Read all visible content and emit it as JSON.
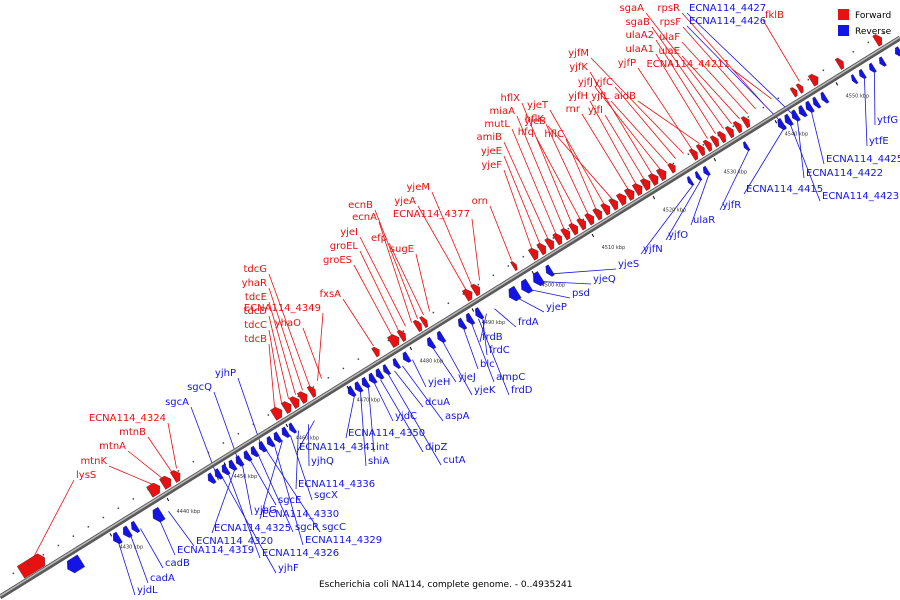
{
  "caption": "Escherichia coli NA114, complete genome. - 0..4935241",
  "legend": [
    {
      "label": "Forward",
      "color": "#e81010"
    },
    {
      "label": "Reverse",
      "color": "#1414e6"
    }
  ],
  "colors": {
    "forward": "#e81010",
    "reverse": "#1414e6",
    "backbone": "#999999",
    "leader_forward": "#e81010",
    "leader_reverse": "#1414e6"
  },
  "ticks": [
    "4430 kbp",
    "4440 kbp",
    "4450 kbp",
    "4460 kbp",
    "4470 kbp",
    "4480 kbp",
    "4490 kbp",
    "4500 kbp",
    "4510 kbp",
    "4520 kbp",
    "4530 kbp",
    "4540 kbp",
    "4550 kbp"
  ],
  "forward_labels": [
    "lysS",
    "mtnK",
    "mtnA",
    "mtnB",
    "ECNA114_4324",
    "tdcB",
    "tdcC",
    "tdcD",
    "tdcE",
    "yhaR",
    "tdcG",
    "ECNA114_4349",
    "yhaO",
    "fxsA",
    "groES",
    "groEL",
    "yjeI",
    "ecnA",
    "ecnB",
    "efp",
    "sugE",
    "yjeA",
    "yjeM",
    "ECNA114_4377",
    "orn",
    "yjeF",
    "yjeE",
    "amiB",
    "mutL",
    "miaA",
    "hflX",
    "hfq",
    "hflK",
    "hflC",
    "yjeT",
    "yjeB",
    "rnr",
    "yjfH",
    "yjfI",
    "yjfK",
    "yjfJ",
    "yjfL",
    "yjfC",
    "yjfM",
    "yjfP",
    "aidB",
    "ulaA1",
    "ulaA2",
    "sgaB",
    "sgaA",
    "ulaE",
    "ulaF",
    "rpsF",
    "rpsR",
    "ECNA114_44211",
    "fklB"
  ],
  "reverse_labels": [
    "yjdL",
    "cadA",
    "cadB",
    "ECNA114_4319",
    "ECNA114_4320",
    "yjhF",
    "ECNA114_4326",
    "ECNA114_4325",
    "yjhG",
    "sgcE",
    "sgcR",
    "sgcC",
    "ECNA114_4329",
    "ECNA114_4330",
    "sgcX",
    "ECNA114_4336",
    "yjhQ",
    "ECNA114_4341",
    "ECNA114_4350",
    "shiA",
    "int",
    "yjdC",
    "dipZ",
    "cutA",
    "dcuA",
    "aspA",
    "yjeH",
    "yjeJ",
    "yjeK",
    "blc",
    "ampC",
    "frdD",
    "frdC",
    "frdB",
    "frdA",
    "yjeP",
    "psd",
    "yjeQ",
    "yjeS",
    "yjfN",
    "yjfO",
    "ulaR",
    "yjfR",
    "ECNA114_4415",
    "ECNA114_4423",
    "ECNA114_4422",
    "ECNA114_4425",
    "ytfE",
    "ytfG",
    "ECNA114_4426",
    "ECNA114_4427",
    "yjhP",
    "sgcQ",
    "sgcA"
  ]
}
